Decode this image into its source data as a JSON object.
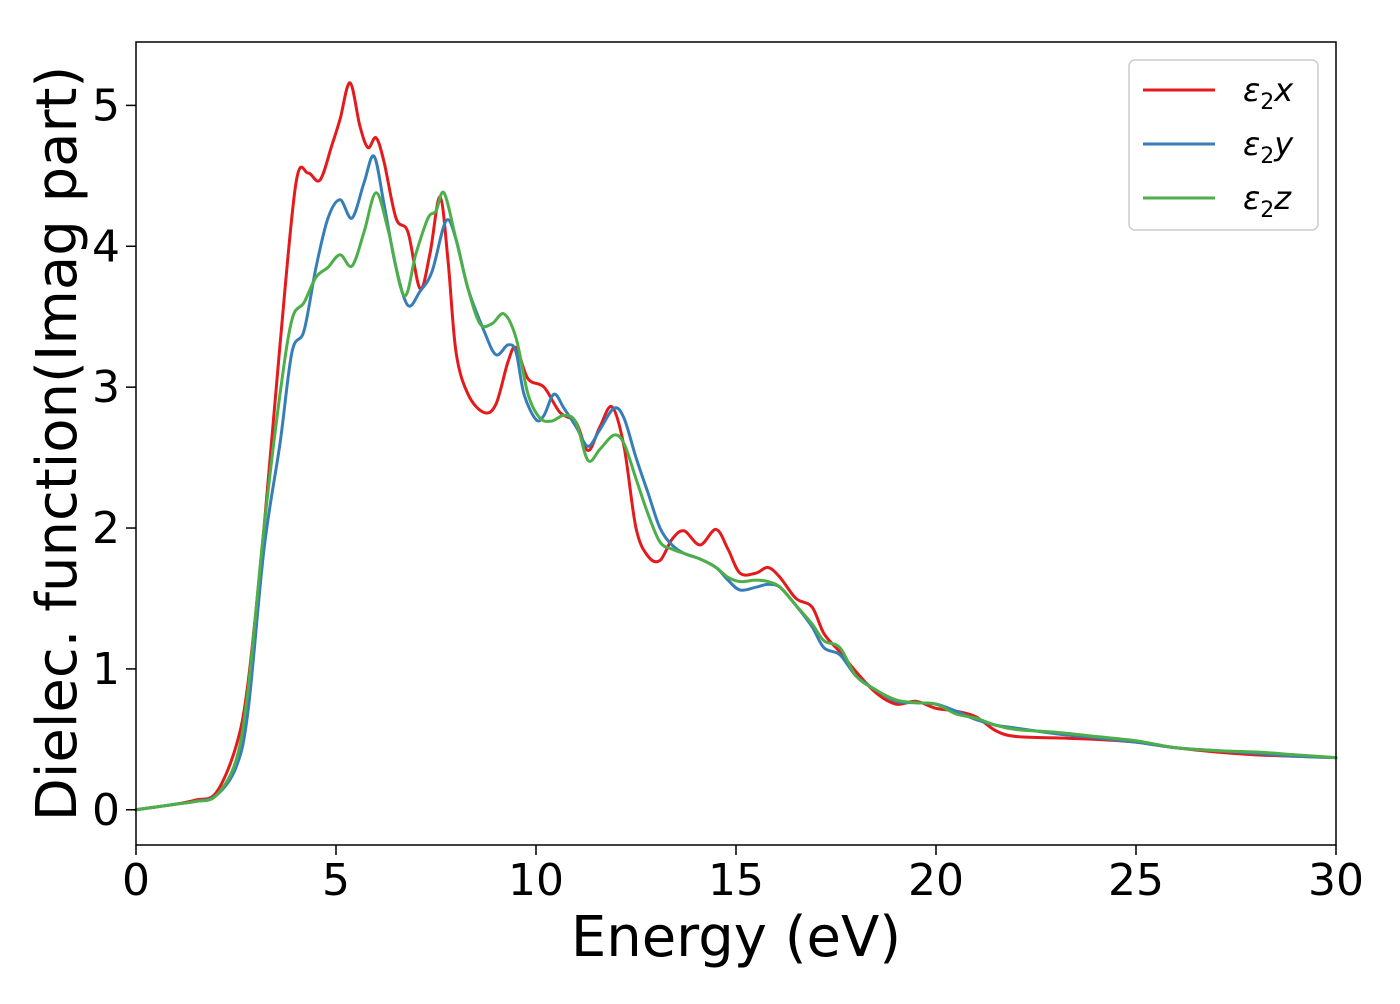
{
  "chart_data": {
    "type": "line",
    "title": "",
    "xlabel": "Energy (eV)",
    "ylabel": "Dielec. function(Imag part)",
    "xlim": [
      0,
      30
    ],
    "ylim": [
      -0.25,
      5.45
    ],
    "xticks": [
      0,
      5,
      10,
      15,
      20,
      25,
      30
    ],
    "yticks": [
      0,
      1,
      2,
      3,
      4,
      5
    ],
    "grid": false,
    "legend_position": "top-right",
    "series": [
      {
        "name": "ε2x",
        "legend_base": "ε",
        "legend_sub": "2",
        "legend_suffix": "x",
        "color": "#e41a1c",
        "x": [
          0,
          0.5,
          1,
          1.5,
          2,
          2.5,
          2.8,
          3.2,
          3.6,
          4.0,
          4.3,
          4.6,
          4.9,
          5.1,
          5.35,
          5.6,
          5.8,
          6.0,
          6.2,
          6.5,
          6.8,
          7.1,
          7.35,
          7.6,
          7.8,
          8.0,
          8.3,
          8.7,
          9.0,
          9.3,
          9.5,
          9.8,
          10.2,
          10.6,
          11.0,
          11.3,
          11.6,
          11.9,
          12.2,
          12.5,
          12.8,
          13.1,
          13.4,
          13.7,
          14.1,
          14.5,
          14.8,
          15.1,
          15.5,
          15.8,
          16.1,
          16.5,
          16.9,
          17.2,
          17.6,
          18.0,
          18.5,
          19.0,
          19.5,
          20.0,
          20.5,
          21.0,
          21.5,
          22.0,
          23.0,
          24.0,
          25.0,
          26.0,
          27.0,
          28.0,
          29.0,
          30.0
        ],
        "y": [
          0,
          0.02,
          0.04,
          0.07,
          0.12,
          0.45,
          0.9,
          2.0,
          3.3,
          4.45,
          4.52,
          4.47,
          4.72,
          4.9,
          5.16,
          4.85,
          4.7,
          4.77,
          4.6,
          4.2,
          4.1,
          3.7,
          3.95,
          4.35,
          3.9,
          3.25,
          2.95,
          2.82,
          2.88,
          3.18,
          3.28,
          3.06,
          3.0,
          2.82,
          2.75,
          2.55,
          2.72,
          2.86,
          2.58,
          2.0,
          1.8,
          1.77,
          1.92,
          1.98,
          1.88,
          1.99,
          1.85,
          1.68,
          1.68,
          1.72,
          1.65,
          1.5,
          1.44,
          1.25,
          1.12,
          0.98,
          0.83,
          0.75,
          0.77,
          0.72,
          0.7,
          0.66,
          0.56,
          0.52,
          0.51,
          0.5,
          0.48,
          0.44,
          0.41,
          0.39,
          0.38,
          0.37
        ]
      },
      {
        "name": "ε2y",
        "legend_base": "ε",
        "legend_sub": "2",
        "legend_suffix": "y",
        "color": "#377eb8",
        "x": [
          0,
          0.5,
          1,
          1.5,
          2,
          2.5,
          2.8,
          3.2,
          3.6,
          3.9,
          4.2,
          4.5,
          4.8,
          5.1,
          5.4,
          5.7,
          5.95,
          6.2,
          6.5,
          6.8,
          7.1,
          7.4,
          7.75,
          8.0,
          8.3,
          8.7,
          9.0,
          9.3,
          9.5,
          9.7,
          10.0,
          10.2,
          10.45,
          10.7,
          11.0,
          11.3,
          11.6,
          11.95,
          12.2,
          12.5,
          12.8,
          13.1,
          13.4,
          13.7,
          14.1,
          14.5,
          14.8,
          15.1,
          15.5,
          15.8,
          16.1,
          16.5,
          16.9,
          17.2,
          17.6,
          18.0,
          18.5,
          19.0,
          19.5,
          20.0,
          20.5,
          21.0,
          21.5,
          22.0,
          23.0,
          24.0,
          25.0,
          26.0,
          27.0,
          28.0,
          29.0,
          30.0
        ],
        "y": [
          0,
          0.02,
          0.04,
          0.06,
          0.1,
          0.3,
          0.7,
          1.85,
          2.6,
          3.25,
          3.4,
          3.85,
          4.2,
          4.33,
          4.2,
          4.45,
          4.64,
          4.3,
          3.85,
          3.58,
          3.68,
          3.82,
          4.18,
          4.05,
          3.7,
          3.4,
          3.23,
          3.3,
          3.25,
          2.95,
          2.77,
          2.8,
          2.95,
          2.85,
          2.72,
          2.58,
          2.7,
          2.85,
          2.78,
          2.5,
          2.25,
          2.0,
          1.88,
          1.82,
          1.78,
          1.72,
          1.63,
          1.56,
          1.58,
          1.6,
          1.58,
          1.45,
          1.3,
          1.15,
          1.1,
          0.95,
          0.85,
          0.77,
          0.76,
          0.75,
          0.7,
          0.64,
          0.6,
          0.58,
          0.54,
          0.51,
          0.48,
          0.44,
          0.42,
          0.4,
          0.38,
          0.37
        ]
      },
      {
        "name": "ε2z",
        "legend_base": "ε",
        "legend_sub": "2",
        "legend_suffix": "z",
        "color": "#4daf4a",
        "x": [
          0,
          0.5,
          1,
          1.5,
          2,
          2.5,
          2.8,
          3.2,
          3.6,
          3.9,
          4.2,
          4.5,
          4.8,
          5.1,
          5.4,
          5.7,
          6.0,
          6.3,
          6.7,
          7.0,
          7.3,
          7.5,
          7.7,
          8.0,
          8.3,
          8.6,
          8.9,
          9.2,
          9.5,
          9.8,
          10.1,
          10.4,
          10.7,
          11.0,
          11.3,
          11.6,
          11.95,
          12.2,
          12.5,
          12.8,
          13.1,
          13.4,
          13.7,
          14.1,
          14.5,
          14.8,
          15.1,
          15.5,
          15.8,
          16.1,
          16.5,
          16.9,
          17.2,
          17.6,
          18.0,
          18.5,
          19.0,
          19.5,
          20.0,
          20.5,
          21.0,
          21.5,
          22.0,
          23.0,
          24.0,
          25.0,
          26.0,
          27.0,
          28.0,
          29.0,
          30.0
        ],
        "y": [
          0,
          0.02,
          0.04,
          0.06,
          0.1,
          0.35,
          0.85,
          2.0,
          2.95,
          3.48,
          3.6,
          3.78,
          3.85,
          3.94,
          3.86,
          4.1,
          4.38,
          4.12,
          3.65,
          3.95,
          4.2,
          4.25,
          4.38,
          4.05,
          3.7,
          3.45,
          3.45,
          3.52,
          3.35,
          2.95,
          2.78,
          2.76,
          2.8,
          2.75,
          2.48,
          2.56,
          2.66,
          2.6,
          2.35,
          2.1,
          1.9,
          1.85,
          1.82,
          1.78,
          1.72,
          1.65,
          1.62,
          1.63,
          1.62,
          1.58,
          1.45,
          1.32,
          1.2,
          1.15,
          0.95,
          0.85,
          0.78,
          0.76,
          0.75,
          0.68,
          0.65,
          0.6,
          0.57,
          0.55,
          0.52,
          0.49,
          0.44,
          0.42,
          0.41,
          0.39,
          0.37
        ]
      }
    ]
  }
}
